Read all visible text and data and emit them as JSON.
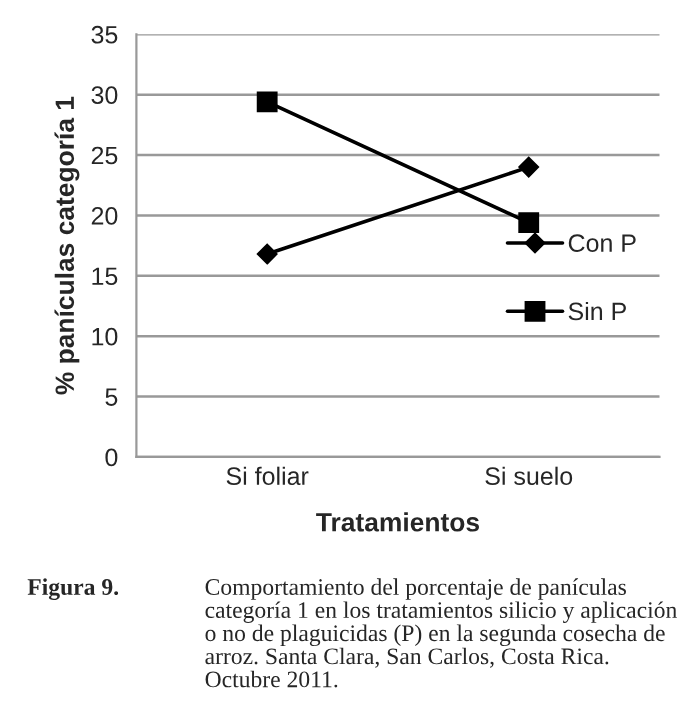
{
  "chart_data": {
    "type": "line",
    "xlabel": "Tratamientos",
    "ylabel": "% panículas categoría 1",
    "categories": [
      "Si foliar",
      "Si suelo"
    ],
    "series": [
      {
        "name": "Con P",
        "color": "#000000",
        "values": [
          16.8,
          24.0
        ],
        "marker": "diamond"
      },
      {
        "name": "Sin P",
        "color": "#000000",
        "values": [
          29.4,
          19.4
        ],
        "marker": "square"
      }
    ],
    "ylim": [
      0,
      35
    ],
    "yticks": [
      0,
      5,
      10,
      15,
      20,
      25,
      30,
      35
    ],
    "grid": "y",
    "legend": "right",
    "line_style": "solid",
    "annotations": [
      "Figura 9.",
      "Comportamiento del porcentaje de panículas categoría 1 en los tratamientos silicio y aplicación o no de plaguicidas (P) en la segunda cosecha de arroz. Santa Clara, San Carlos, Costa Rica. Octubre 2011."
    ]
  }
}
